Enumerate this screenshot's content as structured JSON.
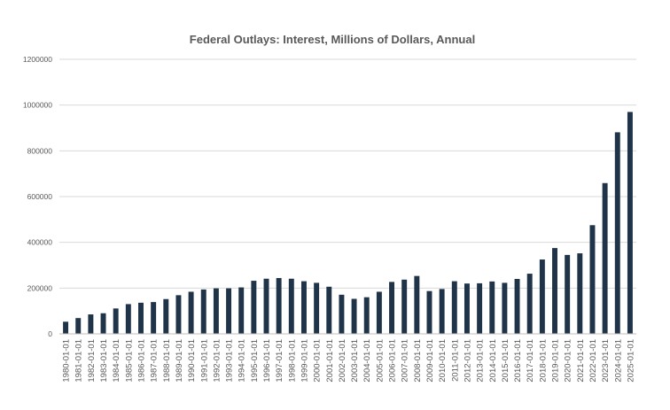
{
  "chart_data": {
    "type": "bar",
    "title": "Federal Outlays: Interest, Millions of Dollars, Annual",
    "xlabel": "",
    "ylabel": "",
    "ylim": [
      0,
      1200000
    ],
    "yticks": [
      0,
      200000,
      400000,
      600000,
      800000,
      1000000,
      1200000
    ],
    "grid": true,
    "legend": "none",
    "bar_color": "#203449",
    "categories": [
      "1980-01-01",
      "1981-01-01",
      "1982-01-01",
      "1983-01-01",
      "1984-01-01",
      "1985-01-01",
      "1986-01-01",
      "1987-01-01",
      "1988-01-01",
      "1989-01-01",
      "1990-01-01",
      "1991-01-01",
      "1992-01-01",
      "1993-01-01",
      "1994-01-01",
      "1995-01-01",
      "1996-01-01",
      "1997-01-01",
      "1998-01-01",
      "1999-01-01",
      "2000-01-01",
      "2001-01-01",
      "2002-01-01",
      "2003-01-01",
      "2004-01-01",
      "2005-01-01",
      "2006-01-01",
      "2007-01-01",
      "2008-01-01",
      "2009-01-01",
      "2010-01-01",
      "2011-01-01",
      "2012-01-01",
      "2013-01-01",
      "2014-01-01",
      "2015-01-01",
      "2016-01-01",
      "2017-01-01",
      "2018-01-01",
      "2019-01-01",
      "2020-01-01",
      "2021-01-01",
      "2022-01-01",
      "2023-01-01",
      "2024-01-01",
      "2025-01-01"
    ],
    "values": [
      53000,
      69000,
      85000,
      90000,
      111000,
      130000,
      136000,
      139000,
      152000,
      169000,
      184000,
      194000,
      199000,
      199000,
      203000,
      232000,
      241000,
      244000,
      241000,
      230000,
      223000,
      206000,
      171000,
      153000,
      160000,
      184000,
      227000,
      237000,
      253000,
      187000,
      196000,
      230000,
      220000,
      221000,
      229000,
      223000,
      240000,
      263000,
      325000,
      375000,
      345000,
      352000,
      475000,
      659000,
      881000,
      970000
    ]
  }
}
